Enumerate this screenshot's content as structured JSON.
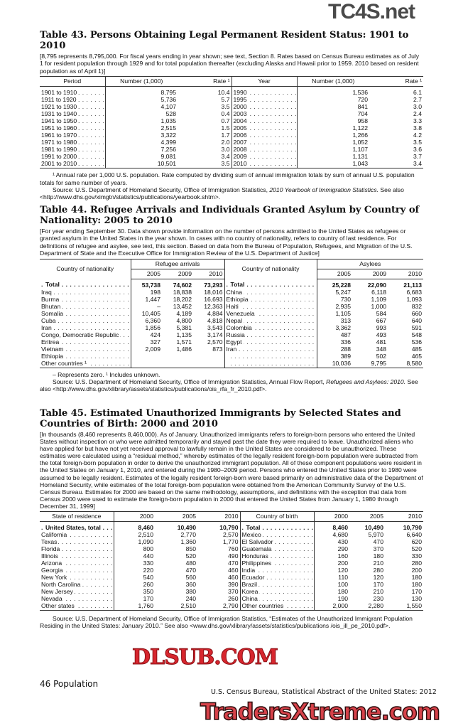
{
  "t43": {
    "title": "Table 43. Persons Obtaining Legal Permanent Resident Status: 1901 to 2010",
    "note": "[8,795 represents 8,795,000. For fiscal years ending in year shown; see text, Section 8. Rates based on Census Bureau estimates as of July 1 for resident population through 1929 and for total population thereafter (excluding Alaska and Hawaii prior to 1959. 2010 based on resident population as of April 1)]",
    "headers": [
      "Period",
      "Number (1,000)",
      "Rate ¹",
      "Year",
      "Number (1,000)",
      "Rate ¹"
    ],
    "rows": [
      [
        "1901 to 1910",
        "8,795",
        "10.4",
        "1990",
        "1,536",
        "6.1"
      ],
      [
        "1911 to 1920",
        "5,736",
        "5.7",
        "1995",
        "720",
        "2.7"
      ],
      [
        "1921 to 1930",
        "4,107",
        "3.5",
        "2000",
        "841",
        "3.0"
      ],
      [
        "1931 to 1940",
        "528",
        "0.4",
        "2003",
        "704",
        "2.4"
      ],
      [
        "1941 to 1950",
        "1,035",
        "0.7",
        "2004",
        "958",
        "3.3"
      ],
      [
        "1951 to 1960",
        "2,515",
        "1.5",
        "2005",
        "1,122",
        "3.8"
      ],
      [
        "1961 to 1970",
        "3,322",
        "1.7",
        "2006",
        "1,266",
        "4.2"
      ],
      [
        "1971 to 1980",
        "4,399",
        "2.0",
        "2007",
        "1,052",
        "3.5"
      ],
      [
        "1981 to 1990",
        "7,256",
        "3.0",
        "2008",
        "1,107",
        "3.6"
      ],
      [
        "1991 to 2000",
        "9,081",
        "3.4",
        "2009",
        "1,131",
        "3.7"
      ],
      [
        "2001 to 2010",
        "10,501",
        "3.5",
        "2010",
        "1,043",
        "3.4"
      ]
    ],
    "footnote": "¹ Annual rate per 1,000 U.S. population. Rate computed by dividing sum of annual immigration totals by sum of annual U.S. population totals for same number of years.",
    "source_pre": "Source: U.S. Department of Homeland Security, Office of Immigration Statistics, ",
    "source_italic": "2010 Yearbook of Immigration Statistics.",
    "source_post": " See also <http://www.dhs.gov/ximgtn/statistics/publications/yearbook.shtm>."
  },
  "t44": {
    "title": "Table 44. Refugee Arrivals and Individuals Granted Asylum by Country of Nationality: 2005 to 2010",
    "note": "[For year ending September 30. Data shown provide information on the number of persons admitted to the United States as refugees or granted asylum in the United States in the year shown. In cases with no country of nationality, refers to country of last residence. For definitions of refugee and asylee, see text, this section. Based on data from the Bureau of Population, Refugees, and Migration of the U.S. Department of State and the Executive Office for Immigration Review of the U.S. Department of Justice]",
    "col_country": "Country of nationality",
    "group_left": "Refugee arrivals",
    "group_right": "Asylees",
    "years": [
      "2005",
      "2009",
      "2010"
    ],
    "rows": [
      [
        "Total",
        "53,738",
        "74,602",
        "73,293",
        "Total",
        "25,228",
        "22,090",
        "21,113"
      ],
      [
        "Iraq",
        "198",
        "18,838",
        "18,016",
        "China",
        "5,247",
        "6,118",
        "6,683"
      ],
      [
        "Burma",
        "1,447",
        "18,202",
        "16,693",
        "Ethiopia",
        "730",
        "1,109",
        "1,093"
      ],
      [
        "Bhutan",
        "–",
        "13,452",
        "12,363",
        "Haiti",
        "2,935",
        "1,000",
        "832"
      ],
      [
        "Somalia",
        "10,405",
        "4,189",
        "4,884",
        "Venezuela",
        "1,105",
        "584",
        "660"
      ],
      [
        "Cuba",
        "6,360",
        "4,800",
        "4,818",
        "Nepal",
        "313",
        "667",
        "640"
      ],
      [
        "Iran",
        "1,856",
        "5,381",
        "3,543",
        "Colombia",
        "3,362",
        "993",
        "591"
      ],
      [
        "Congo, Democratic Republic",
        "424",
        "1,135",
        "3,174",
        "Russia",
        "487",
        "493",
        "548"
      ],
      [
        "Eritrea",
        "327",
        "1,571",
        "2,570",
        "Egypt",
        "336",
        "481",
        "536"
      ],
      [
        "Vietnam",
        "2,009",
        "1,486",
        "873",
        "Iran",
        "288",
        "348",
        "485"
      ],
      [
        "Ethiopia",
        "",
        "",
        "",
        "",
        "389",
        "502",
        "465"
      ],
      [
        "Other countries ¹",
        "",
        "",
        "",
        "",
        "10,036",
        "9,795",
        "8,580"
      ]
    ],
    "footnote": "– Represents zero. ¹ Includes unknown.",
    "source_pre": "Source: U.S. Department of Homeland Security, Office of Immigration Statistics, Annual Flow Report, ",
    "source_italic": "Refugees and Asylees: 2010.",
    "source_post": " See also <http://www.dhs.gov/xlibrary/assets/statistics/publications/ois_rfa_fr_2010.pdf>."
  },
  "t45": {
    "title": "Table 45. Estimated Unauthorized Immigrants by Selected States and Countries of Birth: 2000 and 2010",
    "note": "[In thousands (8,460 represents 8,460,000). As of January. Unauthorized immigrants refers to foreign-born persons who entered the United States without inspection or who were admitted temporarily and stayed past the date they were required to leave. Unauthorized aliens who have applied for but have not yet received approval to lawfully remain in the United States are considered to be unauthorized. These estimates were calculated using a “residual method,” whereby estimates of the legally resident foreign-born population were subtracted from the total foreign-born population in order to derive the unauthorized immigrant population. All of these component populations were resident in the United States on January 1, 2010, and entered during the 1980–2009 period. Persons who entered the United States prior to 1980 were assumed to be legally resident. Estimates of the legally resident foreign-born were based primarily on administrative data of the Department of Homeland Security, while estimates of the total foreign-born population were obtained from the American Community Survey of the U.S. Census Bureau. Estimates for 2000 are based on the same methodology, assumptions, and definitions with the exception that data from Census 2000 were used to estimate the foreign-born population in 2000 that entered the United States from January 1, 1980 through December 31, 1999]",
    "headers": [
      "State of residence",
      "2000",
      "2005",
      "2010",
      "Country of birth",
      "2000",
      "2005",
      "2010"
    ],
    "rows": [
      [
        "United States, total",
        "8,460",
        "10,490",
        "10,790",
        "Total",
        "8,460",
        "10,490",
        "10,790"
      ],
      [
        "California",
        "2,510",
        "2,770",
        "2,570",
        "Mexico",
        "4,680",
        "5,970",
        "6,640"
      ],
      [
        "Texas",
        "1,090",
        "1,360",
        "1,770",
        "El Salvador",
        "430",
        "470",
        "620"
      ],
      [
        "Florida",
        "800",
        "850",
        "760",
        "Guatemala",
        "290",
        "370",
        "520"
      ],
      [
        "Illinois",
        "440",
        "520",
        "490",
        "Honduras",
        "160",
        "180",
        "330"
      ],
      [
        "Arizona",
        "330",
        "480",
        "470",
        "Philippines",
        "200",
        "210",
        "280"
      ],
      [
        "Georgia",
        "220",
        "470",
        "460",
        "India",
        "120",
        "280",
        "200"
      ],
      [
        "New York",
        "540",
        "560",
        "460",
        "Ecuador",
        "110",
        "120",
        "180"
      ],
      [
        "North Carolina",
        "260",
        "360",
        "390",
        "Brazil",
        "100",
        "170",
        "180"
      ],
      [
        "New Jersey",
        "350",
        "380",
        "370",
        "Korea",
        "180",
        "210",
        "170"
      ],
      [
        "Nevada",
        "170",
        "240",
        "260",
        "China",
        "190",
        "230",
        "130"
      ],
      [
        "Other states",
        "1,760",
        "2,510",
        "2,790",
        "Other countries",
        "2,000",
        "2,280",
        "1,550"
      ]
    ],
    "source": "Source: U.S. Department of Homeland Security, Office of Immigration Statistics, “Estimates of the Unauthorized Immigrant Population Residing in the United States: January 2010.” See also <www.dhs.gov/xlibrary/assets/statistics/publications /ois_ill_pe_2010.pdf>."
  },
  "footer": {
    "page": "46  Population",
    "citation": "U.S. Census Bureau, Statistical Abstract of the United States: 2012"
  },
  "watermarks": {
    "top": "TC4S.net",
    "middle": "DLSUB.COM",
    "bottom": "TradersXtreme.com"
  }
}
